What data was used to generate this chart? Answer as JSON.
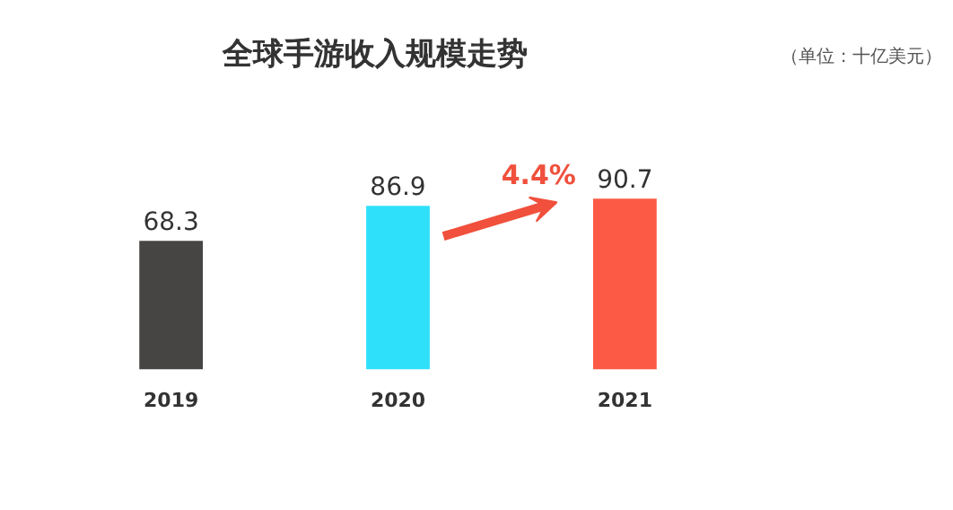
{
  "chart_data": {
    "type": "bar",
    "title": "全球手游收入规模走势",
    "categories": [
      "2019",
      "2020",
      "2021"
    ],
    "values": [
      68.3,
      86.9,
      90.7
    ],
    "colors": [
      "#474444",
      "#2fe0fb",
      "#fc5a45"
    ],
    "data_labels": true,
    "annotations": [
      "（单位：十亿美元）",
      "4.4%"
    ]
  }
}
